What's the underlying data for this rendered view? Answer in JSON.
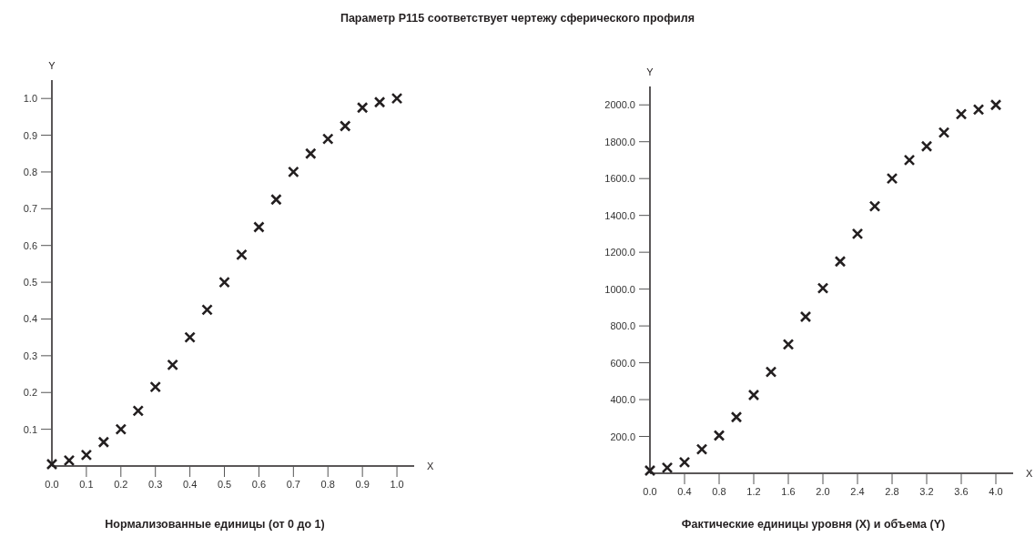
{
  "chart_data": [
    {
      "type": "scatter",
      "title": "Параметр P115 соответствует чертежу сферического профиля",
      "xlabel": "X",
      "ylabel": "Y",
      "annotations": [
        "Нормализованные единицы (от 0 до 1)"
      ],
      "marker": "cross",
      "x": [
        0,
        0.05,
        0.1,
        0.15,
        0.2,
        0.25,
        0.3,
        0.35,
        0.4,
        0.45,
        0.5,
        0.55,
        0.6,
        0.65,
        0.7,
        0.75,
        0.8,
        0.85,
        0.9,
        0.95,
        1.0
      ],
      "series": [
        {
          "color": "#231f20",
          "values": [
            0.005,
            0.015,
            0.03,
            0.065,
            0.1,
            0.15,
            0.215,
            0.275,
            0.35,
            0.425,
            0.5,
            0.575,
            0.65,
            0.725,
            0.8,
            0.85,
            0.89,
            0.925,
            0.975,
            0.99,
            1.0
          ]
        }
      ],
      "xlim": [
        0,
        1.05
      ],
      "ylim": [
        0,
        1.05
      ],
      "xticks": [
        {
          "value": 0,
          "label": "0.0"
        },
        0.1,
        0.2,
        0.3,
        0.4,
        0.5,
        0.6,
        0.7,
        0.8,
        0.9,
        {
          "value": 1,
          "label": "1.0"
        }
      ],
      "yticks": [
        0.1,
        0.2,
        0.3,
        0.4,
        0.5,
        0.6,
        0.7,
        0.8,
        0.9,
        {
          "value": 1,
          "label": "1.0"
        }
      ]
    },
    {
      "type": "scatter",
      "xlabel": "X",
      "ylabel": "Y",
      "annotations": [
        "Фактические единицы уровня (X) и объема (Y)"
      ],
      "marker": "cross",
      "x": [
        0,
        0.2,
        0.4,
        0.6,
        0.8,
        1.0,
        1.2,
        1.4,
        1.6,
        1.8,
        2.0,
        2.2,
        2.4,
        2.6,
        2.8,
        3.0,
        3.2,
        3.4,
        3.6,
        3.8,
        4.0
      ],
      "series": [
        {
          "color": "#231f20",
          "values": [
            15,
            30,
            60,
            130,
            205,
            305,
            425,
            550,
            700,
            850,
            1005,
            1150,
            1300,
            1450,
            1600,
            1700,
            1775,
            1850,
            1950,
            1975,
            2000
          ]
        }
      ],
      "xlim": [
        0,
        4.2
      ],
      "ylim": [
        0,
        2100
      ],
      "xticks": [
        {
          "value": 0,
          "label": "0.0"
        },
        0.4,
        0.8,
        1.2,
        1.6,
        {
          "value": 2,
          "label": "2.0"
        },
        2.4,
        2.8,
        3.2,
        3.6,
        {
          "value": 4,
          "label": "4.0"
        }
      ],
      "yticks": [
        {
          "value": 200,
          "label": "200.0"
        },
        {
          "value": 400,
          "label": "400.0"
        },
        {
          "value": 600,
          "label": "600.0"
        },
        {
          "value": 800,
          "label": "800.0"
        },
        {
          "value": 1000,
          "label": "1000.0"
        },
        {
          "value": 1200,
          "label": "1200.0"
        },
        {
          "value": 1400,
          "label": "1400.0"
        },
        {
          "value": 1600,
          "label": "1600.0"
        },
        {
          "value": 1800,
          "label": "1800.0"
        },
        {
          "value": 2000,
          "label": "2000.0"
        }
      ]
    }
  ]
}
